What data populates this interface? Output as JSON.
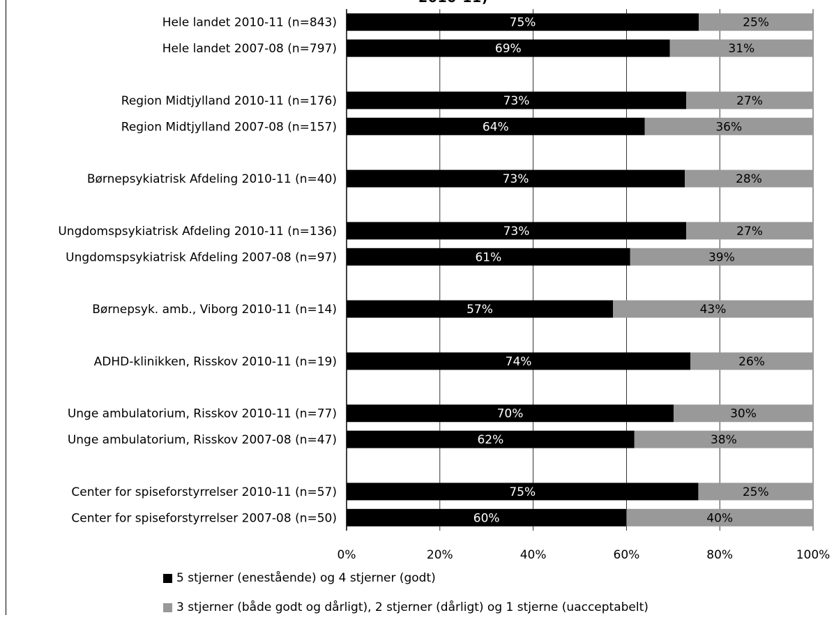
{
  "chart_data": {
    "type": "bar",
    "orientation": "horizontal",
    "stacked": true,
    "title_fragment": "2010-11)",
    "categories": [
      "Hele landet 2010-11 (n=843)",
      "Hele landet 2007-08 (n=797)",
      "",
      "Region Midtjylland 2010-11 (n=176)",
      "Region Midtjylland 2007-08 (n=157)",
      "",
      "Børnepsykiatrisk Afdeling 2010-11 (n=40)",
      "",
      "Ungdomspsykiatrisk Afdeling 2010-11 (n=136)",
      "Ungdomspsykiatrisk Afdeling 2007-08 (n=97)",
      "",
      "Børnepsyk. amb., Viborg 2010-11 (n=14)",
      "",
      "ADHD-klinikken, Risskov 2010-11 (n=19)",
      "",
      "Unge ambulatorium, Risskov 2010-11 (n=77)",
      "Unge ambulatorium, Risskov 2007-08 (n=47)",
      "",
      "Center for spiseforstyrrelser 2010-11 (n=57)",
      "Center for spiseforstyrrelser 2007-08 (n=50)"
    ],
    "series": [
      {
        "name": "5 stjerner (enestående) og 4 stjerner (godt)",
        "color": "#000000",
        "label_color": "#ffffff",
        "values": [
          75.5,
          69.3,
          null,
          72.8,
          63.9,
          null,
          72.5,
          null,
          72.8,
          60.8,
          null,
          57.1,
          null,
          73.7,
          null,
          70.1,
          61.7,
          null,
          75.4,
          60.0
        ],
        "labels": [
          "75%",
          "69%",
          "",
          "73%",
          "64%",
          "",
          "73%",
          "",
          "73%",
          "61%",
          "",
          "57%",
          "",
          "74%",
          "",
          "70%",
          "62%",
          "",
          "75%",
          "60%"
        ]
      },
      {
        "name": "3 stjerner (både godt og dårligt), 2 stjerner (dårligt) og 1 stjerne (uacceptabelt)",
        "color": "#999999",
        "label_color": "#000000",
        "values": [
          24.5,
          30.7,
          null,
          27.2,
          36.1,
          null,
          27.5,
          null,
          27.2,
          39.2,
          null,
          42.9,
          null,
          26.3,
          null,
          29.9,
          38.3,
          null,
          24.6,
          40.0
        ],
        "labels": [
          "25%",
          "31%",
          "",
          "27%",
          "36%",
          "",
          "28%",
          "",
          "27%",
          "39%",
          "",
          "43%",
          "",
          "26%",
          "",
          "30%",
          "38%",
          "",
          "25%",
          "40%"
        ]
      }
    ],
    "xlim": [
      0,
      100
    ],
    "xticks": [
      "0%",
      "20%",
      "40%",
      "60%",
      "80%",
      "100%"
    ],
    "grid": true,
    "legend_position": "bottom"
  }
}
